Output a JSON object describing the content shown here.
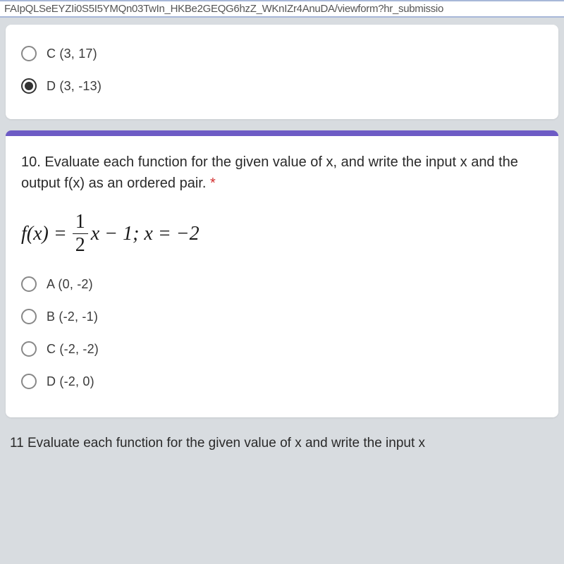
{
  "url_bar": "FAIpQLSeEYZIi0S5I5YMQn03TwIn_HKBe2GEQG6hzZ_WKnIZr4AnuDA/viewform?hr_submissio",
  "prev_question": {
    "options": [
      {
        "label": "C (3, 17)",
        "selected": false
      },
      {
        "label": "D (3, -13)",
        "selected": true
      }
    ]
  },
  "question": {
    "number": "10.",
    "text": "Evaluate each function for the given value of x, and write the input x and the output f(x) as an ordered pair.",
    "required": "*",
    "formula": {
      "lhs": "f(x) =",
      "frac_num": "1",
      "frac_den": "2",
      "rhs": "x − 1;  x = −2"
    },
    "options": [
      {
        "label": "A (0, -2)",
        "selected": false
      },
      {
        "label": "B (-2, -1)",
        "selected": false
      },
      {
        "label": "C (-2, -2)",
        "selected": false
      },
      {
        "label": "D (-2, 0)",
        "selected": false
      }
    ]
  },
  "next_cutoff": "11  Evaluate each function for the given value of x  and write the input x",
  "colors": {
    "accent": "#6d5bc5",
    "background": "#d8dce0",
    "card": "#ffffff",
    "text": "#2a2a2a",
    "radio_border": "#888",
    "required": "#d32f2f"
  }
}
